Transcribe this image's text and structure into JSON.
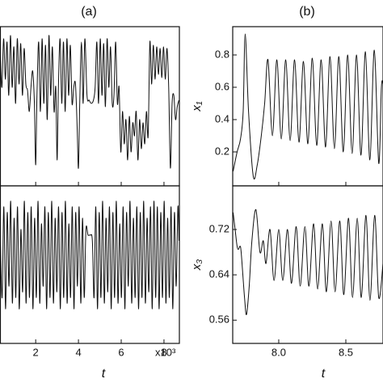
{
  "chart_data": [
    {
      "type": "line",
      "title": "(a)",
      "color": "#111111",
      "xlim": [
        0.35,
        8.72
      ],
      "ylim": [
        -0.01,
        0.975
      ],
      "x": [
        0.35,
        0.42,
        0.5,
        0.58,
        0.66,
        0.74,
        0.82,
        0.9,
        0.98,
        1.06,
        1.14,
        1.22,
        1.3,
        1.38,
        1.46,
        1.54,
        1.62,
        1.7,
        1.78,
        1.86,
        1.94,
        2.0,
        2.06,
        2.14,
        2.22,
        2.3,
        2.38,
        2.46,
        2.54,
        2.62,
        2.7,
        2.78,
        2.86,
        2.94,
        3.0,
        3.06,
        3.14,
        3.22,
        3.3,
        3.38,
        3.46,
        3.54,
        3.62,
        3.7,
        3.78,
        3.86,
        3.94,
        4.0,
        4.06,
        4.14,
        4.22,
        4.3,
        4.4,
        4.5,
        4.6,
        4.7,
        4.78,
        4.86,
        4.94,
        5.02,
        5.1,
        5.18,
        5.26,
        5.34,
        5.42,
        5.5,
        5.58,
        5.66,
        5.74,
        5.82,
        5.9,
        5.98,
        6.06,
        6.14,
        6.22,
        6.3,
        6.38,
        6.46,
        6.54,
        6.62,
        6.7,
        6.78,
        6.86,
        6.94,
        7.02,
        7.1,
        7.18,
        7.26,
        7.34,
        7.42,
        7.5,
        7.58,
        7.66,
        7.74,
        7.82,
        7.9,
        7.98,
        8.06,
        8.14,
        8.22,
        8.3,
        8.38,
        8.46,
        8.54,
        8.62,
        8.7
      ],
      "values": [
        0.8,
        0.6,
        0.9,
        0.65,
        0.88,
        0.55,
        0.92,
        0.6,
        0.85,
        0.5,
        0.9,
        0.62,
        0.87,
        0.55,
        0.84,
        0.62,
        0.58,
        0.45,
        0.6,
        0.7,
        0.5,
        0.12,
        0.55,
        0.88,
        0.45,
        0.9,
        0.5,
        0.86,
        0.4,
        0.92,
        0.55,
        0.85,
        0.45,
        0.6,
        0.15,
        0.58,
        0.9,
        0.5,
        0.88,
        0.45,
        0.9,
        0.55,
        0.86,
        0.5,
        0.6,
        0.62,
        0.35,
        0.1,
        0.5,
        0.88,
        0.5,
        0.9,
        0.55,
        0.52,
        0.5,
        0.52,
        0.6,
        0.88,
        0.5,
        0.9,
        0.55,
        0.87,
        0.48,
        0.9,
        0.6,
        0.85,
        0.5,
        0.55,
        0.88,
        0.5,
        0.6,
        0.2,
        0.45,
        0.25,
        0.4,
        0.15,
        0.42,
        0.2,
        0.38,
        0.3,
        0.45,
        0.15,
        0.4,
        0.22,
        0.38,
        0.25,
        0.45,
        0.3,
        0.88,
        0.62,
        0.86,
        0.65,
        0.85,
        0.68,
        0.84,
        0.66,
        0.85,
        0.65,
        0.84,
        0.6,
        0.1,
        0.5,
        0.55,
        0.4,
        0.48,
        0.52
      ]
    },
    {
      "type": "line",
      "color": "#111111",
      "xlim": [
        0.35,
        8.72
      ],
      "ylim": [
        0.519,
        0.797
      ],
      "xlabel": "t",
      "x_scale_label": "x10³",
      "xticks": [
        2,
        4,
        6,
        8
      ],
      "x": [
        0.35,
        0.43,
        0.51,
        0.59,
        0.67,
        0.75,
        0.83,
        0.91,
        0.99,
        1.07,
        1.15,
        1.23,
        1.31,
        1.39,
        1.47,
        1.55,
        1.63,
        1.71,
        1.79,
        1.87,
        1.95,
        2.03,
        2.11,
        2.19,
        2.27,
        2.35,
        2.43,
        2.51,
        2.59,
        2.67,
        2.75,
        2.83,
        2.91,
        2.99,
        3.07,
        3.15,
        3.23,
        3.31,
        3.39,
        3.47,
        3.55,
        3.63,
        3.71,
        3.79,
        3.87,
        3.95,
        4.03,
        4.11,
        4.19,
        4.27,
        4.35,
        4.45,
        4.55,
        4.65,
        4.73,
        4.81,
        4.89,
        4.97,
        5.05,
        5.13,
        5.21,
        5.29,
        5.37,
        5.45,
        5.53,
        5.61,
        5.69,
        5.77,
        5.85,
        5.93,
        6.01,
        6.09,
        6.17,
        6.25,
        6.33,
        6.41,
        6.49,
        6.57,
        6.65,
        6.73,
        6.81,
        6.89,
        6.97,
        7.05,
        7.13,
        7.21,
        7.29,
        7.37,
        7.45,
        7.53,
        7.61,
        7.69,
        7.77,
        7.85,
        7.93,
        8.01,
        8.09,
        8.17,
        8.25,
        8.33,
        8.41,
        8.49,
        8.57,
        8.65,
        8.7
      ],
      "values": [
        0.7,
        0.6,
        0.76,
        0.58,
        0.75,
        0.62,
        0.77,
        0.59,
        0.74,
        0.6,
        0.76,
        0.58,
        0.72,
        0.61,
        0.77,
        0.59,
        0.75,
        0.6,
        0.76,
        0.58,
        0.74,
        0.6,
        0.77,
        0.59,
        0.73,
        0.62,
        0.76,
        0.58,
        0.75,
        0.6,
        0.77,
        0.59,
        0.74,
        0.61,
        0.76,
        0.58,
        0.75,
        0.6,
        0.77,
        0.59,
        0.73,
        0.6,
        0.76,
        0.58,
        0.75,
        0.62,
        0.76,
        0.59,
        0.74,
        0.6,
        0.72,
        0.71,
        0.71,
        0.7,
        0.6,
        0.76,
        0.58,
        0.75,
        0.6,
        0.77,
        0.59,
        0.74,
        0.61,
        0.76,
        0.58,
        0.75,
        0.6,
        0.77,
        0.59,
        0.73,
        0.6,
        0.76,
        0.58,
        0.75,
        0.62,
        0.77,
        0.59,
        0.74,
        0.6,
        0.76,
        0.58,
        0.75,
        0.6,
        0.77,
        0.59,
        0.74,
        0.61,
        0.76,
        0.58,
        0.77,
        0.6,
        0.76,
        0.58,
        0.75,
        0.6,
        0.77,
        0.59,
        0.74,
        0.6,
        0.76,
        0.58,
        0.75,
        0.62,
        0.76,
        0.7
      ]
    },
    {
      "type": "line",
      "title": "(b)",
      "color": "#111111",
      "ylabel": "x₁",
      "xlim": [
        7.657,
        8.777
      ],
      "ylim": [
        -0.01,
        0.975
      ],
      "yticks": [
        0.2,
        0.4,
        0.6,
        0.8
      ],
      "x": [
        7.66,
        7.69,
        7.715,
        7.735,
        7.75,
        7.775,
        7.81,
        7.84,
        7.87,
        7.895,
        7.92,
        7.953,
        7.986,
        8.019,
        8.052,
        8.085,
        8.118,
        8.151,
        8.184,
        8.217,
        8.25,
        8.283,
        8.316,
        8.349,
        8.382,
        8.415,
        8.448,
        8.481,
        8.514,
        8.547,
        8.58,
        8.613,
        8.646,
        8.679,
        8.712,
        8.745,
        8.765,
        8.777
      ],
      "values": [
        0.08,
        0.2,
        0.28,
        0.45,
        0.93,
        0.45,
        0.05,
        0.12,
        0.3,
        0.5,
        0.77,
        0.3,
        0.77,
        0.28,
        0.77,
        0.27,
        0.77,
        0.26,
        0.76,
        0.25,
        0.78,
        0.24,
        0.77,
        0.23,
        0.79,
        0.22,
        0.79,
        0.2,
        0.8,
        0.19,
        0.8,
        0.18,
        0.82,
        0.15,
        0.83,
        0.13,
        0.6,
        0.62
      ]
    },
    {
      "type": "line",
      "color": "#111111",
      "ylabel": "x₃",
      "xlabel": "t",
      "xlim": [
        7.657,
        8.777
      ],
      "ylim": [
        0.519,
        0.797
      ],
      "xticks": [
        {
          "value": 8,
          "label": "8.0"
        },
        8.5
      ],
      "yticks": [
        0.56,
        0.64,
        0.72
      ],
      "x": [
        7.66,
        7.675,
        7.69,
        7.7,
        7.71,
        7.72,
        7.745,
        7.76,
        7.78,
        7.8,
        7.83,
        7.86,
        7.885,
        7.905,
        7.935,
        7.965,
        8.0,
        8.03,
        8.065,
        8.095,
        8.13,
        8.16,
        8.195,
        8.225,
        8.26,
        8.29,
        8.325,
        8.355,
        8.39,
        8.42,
        8.455,
        8.485,
        8.52,
        8.55,
        8.585,
        8.615,
        8.65,
        8.68,
        8.715,
        8.745,
        8.777
      ],
      "values": [
        0.75,
        0.72,
        0.69,
        0.685,
        0.69,
        0.68,
        0.6,
        0.57,
        0.62,
        0.7,
        0.755,
        0.68,
        0.7,
        0.66,
        0.72,
        0.63,
        0.72,
        0.63,
        0.72,
        0.625,
        0.725,
        0.62,
        0.725,
        0.62,
        0.73,
        0.615,
        0.73,
        0.61,
        0.735,
        0.61,
        0.735,
        0.605,
        0.74,
        0.6,
        0.74,
        0.6,
        0.745,
        0.595,
        0.745,
        0.6,
        0.66
      ]
    }
  ]
}
